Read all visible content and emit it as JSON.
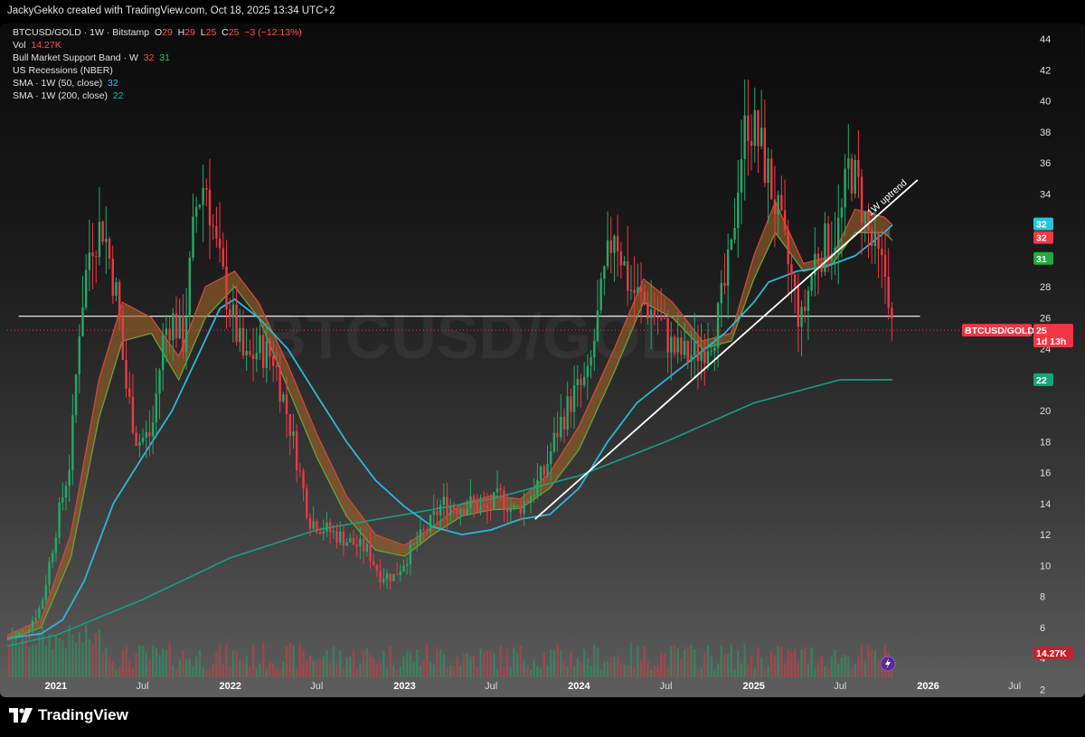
{
  "header": {
    "credit": "JackyGekko created with TradingView.com, Oct 18, 2025 13:34 UTC+2"
  },
  "legend": {
    "symbol_line": {
      "symbol": "BTCUSD/GOLD · 1W · Bitstamp",
      "o_label": "O",
      "o": "29",
      "h_label": "H",
      "h": "29",
      "l_label": "L",
      "l": "25",
      "c_label": "C",
      "c": "25",
      "change": "−3 (−12.13%)"
    },
    "vol": {
      "label": "Vol",
      "value": "14.27K"
    },
    "bmsb": {
      "label": "Bull Market Support Band · W",
      "v1": "32",
      "v2": "31"
    },
    "recessions": {
      "label": "US Recessions (NBER)"
    },
    "sma50": {
      "label": "SMA · 1W (50, close)",
      "value": "32"
    },
    "sma200": {
      "label": "SMA · 1W (200, close)",
      "value": "22"
    }
  },
  "watermark": "BTCUSD/GOLD",
  "annotation": "1W uptrend",
  "price_tags": {
    "sma50": {
      "text": "32",
      "color": "#26c6da"
    },
    "bmsb_upper": {
      "text": "32",
      "color": "#f23645"
    },
    "bmsb_lower": {
      "text": "31",
      "color": "#22ab3c"
    },
    "symbol_name": {
      "text": "BTCUSD/GOLD",
      "color": "#f23645"
    },
    "last": {
      "text": "25",
      "color": "#f23645"
    },
    "countdown": {
      "text": "1d 13h",
      "color": "#f23645"
    },
    "sma200": {
      "text": "22",
      "color": "#14a67a"
    },
    "volume": {
      "text": "14.27K",
      "color": "#c0242f"
    }
  },
  "footer": {
    "brand": "TradingView"
  },
  "colors": {
    "up": "#22ab6a",
    "down": "#f23645",
    "sma50": "#2bb8d6",
    "sma200": "#16a085",
    "band": "#a0642a",
    "line": "#ffffff"
  },
  "chart_data": {
    "type": "line",
    "title": "BTCUSD/GOLD · 1W · Bitstamp",
    "xlabel": "",
    "ylabel": "",
    "y_scale": "linear",
    "ylim": [
      1.5,
      45
    ],
    "xlim": [
      "2020-09-21",
      "2026-07-31"
    ],
    "x_ticks": [
      {
        "date": "2021-01-01",
        "label": "2021"
      },
      {
        "date": "2021-07-01",
        "label": "Jul"
      },
      {
        "date": "2022-01-01",
        "label": "2022"
      },
      {
        "date": "2022-07-01",
        "label": "Jul"
      },
      {
        "date": "2023-01-01",
        "label": "2023"
      },
      {
        "date": "2023-07-01",
        "label": "Jul"
      },
      {
        "date": "2024-01-01",
        "label": "2024"
      },
      {
        "date": "2024-07-01",
        "label": "Jul"
      },
      {
        "date": "2025-01-01",
        "label": "2025"
      },
      {
        "date": "2025-07-01",
        "label": "Jul"
      },
      {
        "date": "2026-01-01",
        "label": "2026"
      },
      {
        "date": "2026-07-01",
        "label": "Jul"
      }
    ],
    "y_ticks": [
      2,
      4,
      6,
      8,
      10,
      12,
      14,
      16,
      18,
      20,
      22,
      24,
      26,
      28,
      30,
      32,
      34,
      36,
      38,
      40,
      42,
      44
    ],
    "grid": false,
    "horizontal_line": {
      "y": 26.1,
      "from": "2020-10-15",
      "to": "2025-12-15"
    },
    "last_price_line": {
      "y": 25.2
    },
    "trendline": {
      "label": "1W uptrend",
      "points": [
        [
          "2023-10-01",
          13.0
        ],
        [
          "2025-12-10",
          34.9
        ]
      ]
    },
    "series": [
      {
        "name": "BTCUSD/GOLD",
        "x": [
          "2020-09-25",
          "2020-11-01",
          "2020-12-01",
          "2021-01-05",
          "2021-02-01",
          "2021-02-20",
          "2021-03-15",
          "2021-04-10",
          "2021-05-10",
          "2021-05-25",
          "2021-06-20",
          "2021-07-20",
          "2021-08-15",
          "2021-09-01",
          "2021-09-25",
          "2021-10-20",
          "2021-11-10",
          "2021-12-05",
          "2022-01-05",
          "2022-02-01",
          "2022-03-01",
          "2022-04-01",
          "2022-05-10",
          "2022-06-15",
          "2022-07-10",
          "2022-08-10",
          "2022-09-10",
          "2022-10-15",
          "2022-11-10",
          "2022-12-10",
          "2023-01-15",
          "2023-02-20",
          "2023-03-20",
          "2023-04-20",
          "2023-05-20",
          "2023-06-20",
          "2023-07-20",
          "2023-08-20",
          "2023-09-20",
          "2023-10-20",
          "2023-11-20",
          "2023-12-20",
          "2024-01-20",
          "2024-02-20",
          "2024-03-15",
          "2024-04-15",
          "2024-05-15",
          "2024-06-15",
          "2024-07-15",
          "2024-08-15",
          "2024-09-15",
          "2024-10-15",
          "2024-11-15",
          "2024-12-01",
          "2024-12-20",
          "2025-01-15",
          "2025-02-10",
          "2025-03-10",
          "2025-04-10",
          "2025-05-10",
          "2025-06-10",
          "2025-07-01",
          "2025-07-20",
          "2025-08-10",
          "2025-09-01",
          "2025-09-20",
          "2025-10-08",
          "2025-10-18"
        ],
        "values": [
          5.3,
          5.9,
          7.4,
          13.0,
          17.0,
          26.0,
          31.0,
          32.0,
          27.0,
          22.0,
          18.0,
          18.5,
          25.0,
          26.0,
          24.5,
          33.0,
          35.0,
          30.0,
          26.0,
          23.0,
          24.0,
          23.5,
          18.5,
          13.0,
          12.5,
          12.0,
          11.5,
          11.0,
          9.4,
          9.3,
          11.0,
          12.5,
          14.0,
          13.8,
          14.0,
          13.5,
          14.5,
          13.5,
          14.5,
          16.0,
          19.0,
          21.0,
          22.0,
          28.0,
          32.0,
          28.0,
          27.0,
          26.0,
          24.0,
          23.5,
          24.0,
          25.5,
          30.0,
          36.0,
          39.0,
          37.0,
          34.0,
          30.0,
          25.5,
          30.0,
          31.0,
          32.0,
          36.0,
          34.0,
          31.0,
          29.5,
          28.5,
          25.0
        ]
      },
      {
        "name": "SMA · 1W (50, close)",
        "x": [
          "2020-09-21",
          "2020-12-01",
          "2021-01-15",
          "2021-03-01",
          "2021-05-01",
          "2021-07-01",
          "2021-09-01",
          "2021-11-01",
          "2021-12-10",
          "2022-01-10",
          "2022-03-01",
          "2022-05-01",
          "2022-07-01",
          "2022-09-01",
          "2022-11-01",
          "2023-01-01",
          "2023-03-01",
          "2023-05-01",
          "2023-07-01",
          "2023-09-01",
          "2023-11-01",
          "2024-01-01",
          "2024-03-01",
          "2024-05-01",
          "2024-07-01",
          "2024-09-01",
          "2024-11-01",
          "2025-01-01",
          "2025-02-01",
          "2025-04-01",
          "2025-06-01",
          "2025-08-01",
          "2025-10-01",
          "2025-10-18"
        ],
        "values": [
          5.3,
          5.6,
          6.5,
          9.0,
          14.0,
          17.0,
          20.0,
          24.0,
          26.6,
          27.2,
          26.0,
          24.0,
          21.0,
          18.0,
          15.5,
          13.8,
          12.5,
          12.0,
          12.3,
          13.0,
          13.3,
          15.0,
          18.0,
          20.5,
          22.0,
          23.5,
          25.0,
          27.0,
          28.3,
          29.0,
          29.3,
          30.0,
          31.5,
          32.0
        ]
      },
      {
        "name": "Bull Market Support Band · W (upper)",
        "x": [
          "2020-09-21",
          "2020-12-01",
          "2021-02-01",
          "2021-04-01",
          "2021-05-20",
          "2021-07-20",
          "2021-09-15",
          "2021-11-10",
          "2022-01-10",
          "2022-03-01",
          "2022-05-01",
          "2022-07-01",
          "2022-09-01",
          "2022-11-01",
          "2023-01-01",
          "2023-03-01",
          "2023-05-01",
          "2023-07-01",
          "2023-09-01",
          "2023-11-01",
          "2024-01-01",
          "2024-03-15",
          "2024-05-15",
          "2024-07-15",
          "2024-09-15",
          "2024-11-15",
          "2025-01-01",
          "2025-02-15",
          "2025-04-15",
          "2025-06-15",
          "2025-08-01",
          "2025-10-01",
          "2025-10-18"
        ],
        "values": [
          5.5,
          6.5,
          12.0,
          22.0,
          27.0,
          26.0,
          23.5,
          28.0,
          29.0,
          27.0,
          23.0,
          18.5,
          14.5,
          12.0,
          11.3,
          12.5,
          14.0,
          14.5,
          14.3,
          16.0,
          19.0,
          24.0,
          28.5,
          27.0,
          24.5,
          25.0,
          30.0,
          33.5,
          29.5,
          30.0,
          33.0,
          32.5,
          32.0
        ]
      },
      {
        "name": "Bull Market Support Band · W (lower)",
        "x": [
          "2020-09-21",
          "2020-12-01",
          "2021-02-01",
          "2021-04-01",
          "2021-05-20",
          "2021-07-20",
          "2021-09-15",
          "2021-11-10",
          "2022-01-10",
          "2022-03-01",
          "2022-05-01",
          "2022-07-01",
          "2022-09-01",
          "2022-11-01",
          "2023-01-01",
          "2023-03-01",
          "2023-05-01",
          "2023-07-01",
          "2023-09-01",
          "2023-11-01",
          "2024-01-01",
          "2024-03-15",
          "2024-05-15",
          "2024-07-15",
          "2024-09-15",
          "2024-11-15",
          "2025-01-01",
          "2025-02-15",
          "2025-04-15",
          "2025-06-15",
          "2025-08-01",
          "2025-10-01",
          "2025-10-18"
        ],
        "values": [
          5.2,
          6.0,
          10.5,
          19.5,
          24.5,
          25.0,
          22.0,
          26.0,
          28.0,
          26.0,
          21.5,
          17.0,
          13.2,
          11.0,
          10.6,
          12.0,
          13.2,
          13.6,
          13.7,
          15.0,
          17.5,
          22.5,
          27.0,
          26.0,
          24.0,
          24.5,
          28.5,
          31.5,
          29.0,
          29.5,
          31.5,
          31.5,
          31.0
        ]
      },
      {
        "name": "SMA · 1W (200, close)",
        "x": [
          "2020-09-21",
          "2021-01-01",
          "2021-07-01",
          "2022-01-01",
          "2022-07-01",
          "2023-01-01",
          "2023-07-01",
          "2024-01-01",
          "2024-07-01",
          "2025-01-01",
          "2025-07-01",
          "2025-10-18"
        ],
        "values": [
          4.8,
          5.5,
          7.8,
          10.5,
          12.3,
          13.3,
          14.3,
          15.8,
          18.0,
          20.5,
          22.0,
          22.0
        ]
      }
    ]
  }
}
